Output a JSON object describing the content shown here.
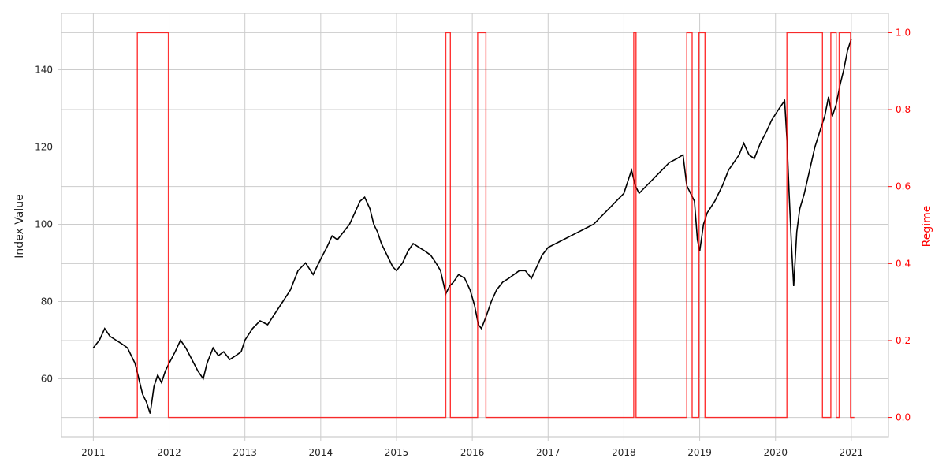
{
  "chart_data": {
    "type": "line",
    "title": "",
    "xlabel": "",
    "ylabel": "Index Value",
    "y2label": "Regime",
    "xlim": [
      2010.58,
      2021.49
    ],
    "ylim": [
      45.0,
      154.6
    ],
    "y2lim": [
      -0.05,
      1.05
    ],
    "grid": true,
    "legend": "none",
    "x_ticks": [
      2011,
      2012,
      2013,
      2014,
      2015,
      2016,
      2017,
      2018,
      2019,
      2020,
      2021
    ],
    "x_tick_labels": [
      "2011",
      "2012",
      "2013",
      "2014",
      "2015",
      "2016",
      "2017",
      "2018",
      "2019",
      "2020",
      "2021"
    ],
    "y_ticks": [
      60,
      80,
      100,
      120,
      140
    ],
    "y_tick_labels": [
      "60",
      "80",
      "100",
      "120",
      "140"
    ],
    "y2_ticks": [
      0.0,
      0.2,
      0.4,
      0.6,
      0.8,
      1.0
    ],
    "y2_tick_labels": [
      "0.0",
      "0.2",
      "0.4",
      "0.6",
      "0.8",
      "1.0"
    ],
    "colors": {
      "index": "#000000",
      "regime": "#ff0000",
      "grid": "#cccccc",
      "spine": "#cccccc"
    },
    "series": [
      {
        "axis": "left",
        "x": [
          2011.0,
          2011.08,
          2011.15,
          2011.22,
          2011.3,
          2011.38,
          2011.45,
          2011.5,
          2011.55,
          2011.6,
          2011.65,
          2011.7,
          2011.75,
          2011.8,
          2011.85,
          2011.9,
          2011.95,
          2012.0,
          2012.08,
          2012.15,
          2012.22,
          2012.3,
          2012.38,
          2012.45,
          2012.5,
          2012.58,
          2012.65,
          2012.72,
          2012.8,
          2012.88,
          2012.95,
          2013.0,
          2013.1,
          2013.2,
          2013.3,
          2013.4,
          2013.5,
          2013.6,
          2013.7,
          2013.8,
          2013.9,
          2014.0,
          2014.08,
          2014.15,
          2014.22,
          2014.3,
          2014.38,
          2014.45,
          2014.52,
          2014.58,
          2014.65,
          2014.7,
          2014.75,
          2014.8,
          2014.85,
          2014.9,
          2014.95,
          2015.0,
          2015.08,
          2015.15,
          2015.22,
          2015.3,
          2015.38,
          2015.45,
          2015.52,
          2015.58,
          2015.65,
          2015.7,
          2015.75,
          2015.82,
          2015.9,
          2015.97,
          2016.03,
          2016.08,
          2016.12,
          2016.18,
          2016.25,
          2016.32,
          2016.4,
          2016.48,
          2016.55,
          2016.62,
          2016.7,
          2016.78,
          2016.85,
          2016.92,
          2017.0,
          2017.1,
          2017.2,
          2017.3,
          2017.4,
          2017.5,
          2017.6,
          2017.7,
          2017.8,
          2017.9,
          2018.0,
          2018.05,
          2018.1,
          2018.15,
          2018.2,
          2018.3,
          2018.4,
          2018.5,
          2018.6,
          2018.7,
          2018.78,
          2018.83,
          2018.88,
          2018.93,
          2018.97,
          2019.0,
          2019.05,
          2019.1,
          2019.2,
          2019.3,
          2019.38,
          2019.45,
          2019.52,
          2019.58,
          2019.65,
          2019.72,
          2019.8,
          2019.88,
          2019.95,
          2020.05,
          2020.12,
          2020.15,
          2020.18,
          2020.21,
          2020.24,
          2020.28,
          2020.32,
          2020.38,
          2020.45,
          2020.52,
          2020.6,
          2020.65,
          2020.7,
          2020.75,
          2020.8,
          2020.85,
          2020.9,
          2020.95,
          2021.0
        ],
        "values": [
          68,
          70,
          73,
          71,
          70,
          69,
          68,
          66,
          64,
          60,
          56,
          54,
          51,
          58,
          61,
          59,
          62,
          64,
          67,
          70,
          68,
          65,
          62,
          60,
          64,
          68,
          66,
          67,
          65,
          66,
          67,
          70,
          73,
          75,
          74,
          77,
          80,
          83,
          88,
          90,
          87,
          91,
          94,
          97,
          96,
          98,
          100,
          103,
          106,
          107,
          104,
          100,
          98,
          95,
          93,
          91,
          89,
          88,
          90,
          93,
          95,
          94,
          93,
          92,
          90,
          88,
          82,
          84,
          85,
          87,
          86,
          83,
          79,
          74,
          73,
          76,
          80,
          83,
          85,
          86,
          87,
          88,
          88,
          86,
          89,
          92,
          94,
          95,
          96,
          97,
          98,
          99,
          100,
          102,
          104,
          106,
          108,
          111,
          114,
          110,
          108,
          110,
          112,
          114,
          116,
          117,
          118,
          110,
          108,
          106,
          96,
          93,
          100,
          103,
          106,
          110,
          114,
          116,
          118,
          121,
          118,
          117,
          121,
          124,
          127,
          130,
          132,
          122,
          108,
          95,
          84,
          98,
          104,
          108,
          114,
          120,
          125,
          128,
          133,
          128,
          131,
          136,
          140,
          145,
          148
        ]
      },
      {
        "axis": "right",
        "kind": "step",
        "x": [
          2011.08,
          2011.58,
          2011.58,
          2011.99,
          2011.99,
          2015.65,
          2015.65,
          2015.71,
          2015.71,
          2016.07,
          2016.07,
          2016.18,
          2016.18,
          2018.13,
          2018.13,
          2018.16,
          2018.16,
          2018.83,
          2018.83,
          2018.9,
          2018.9,
          2018.99,
          2018.99,
          2019.07,
          2019.07,
          2020.15,
          2020.15,
          2020.62,
          2020.62,
          2020.73,
          2020.73,
          2020.8,
          2020.8,
          2020.84,
          2020.84,
          2020.84,
          2020.84,
          2020.99,
          2020.99,
          2021.04
        ],
        "values": [
          0,
          0,
          1,
          1,
          0,
          0,
          1,
          1,
          0,
          0,
          1,
          1,
          0,
          0,
          1,
          1,
          0,
          0,
          1,
          1,
          0,
          0,
          1,
          1,
          0,
          0,
          1,
          1,
          0,
          0,
          1,
          1,
          0,
          0,
          1,
          1,
          1,
          1,
          0,
          0
        ]
      }
    ]
  }
}
